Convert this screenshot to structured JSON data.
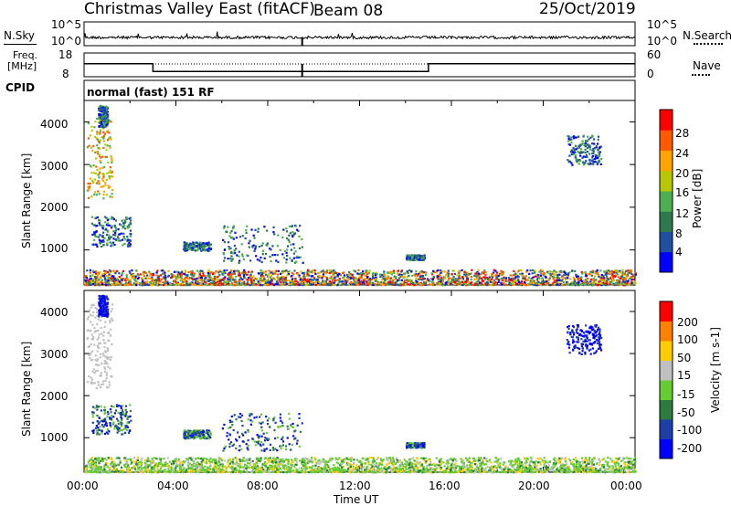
{
  "header": {
    "station": "Christmas Valley East (fitACF)",
    "beam": "Beam 08",
    "date": "25/Oct/2019"
  },
  "nsky": {
    "label": "N.Sky",
    "tick_top": "10^5",
    "tick_bottom": "10^0",
    "right_label": "N.Search",
    "right_tick_top": "10^5",
    "right_tick_bottom": "10^0"
  },
  "freq": {
    "label_line1": "Freq.",
    "label_line2": "[MHz]",
    "tick_top": "18",
    "tick_bottom": "8",
    "right_label": "Nave",
    "right_tick_top": "60",
    "right_tick_bottom": "0"
  },
  "cpid": {
    "label": "CPID",
    "value": "normal (fast) 151 RF"
  },
  "power_panel": {
    "ylabel": "Slant Range [km]",
    "yticks": [
      "4000",
      "3000",
      "2000",
      "1000"
    ],
    "colorbar_label": "Power [dB]",
    "colorbar_ticks": [
      "28",
      "24",
      "20",
      "16",
      "12",
      "8",
      "4"
    ]
  },
  "velocity_panel": {
    "ylabel": "Slant Range [km]",
    "yticks": [
      "4000",
      "3000",
      "2000",
      "1000"
    ],
    "colorbar_label": "Velocity [m s-1]",
    "colorbar_ticks": [
      "200",
      "100",
      "50",
      "15",
      "-15",
      "-50",
      "-100",
      "-200"
    ]
  },
  "xaxis": {
    "label": "Time UT",
    "ticks": [
      "00:00",
      "04:00",
      "08:00",
      "12:00",
      "16:00",
      "20:00",
      "00:00"
    ]
  },
  "chart_data": {
    "type": "heatmap",
    "x_range_hours": [
      0,
      24
    ],
    "y_range_km": [
      180,
      4500
    ],
    "frequency_mhz_segments": [
      {
        "start_hour": 0,
        "end_hour": 3,
        "value": 13.5
      },
      {
        "start_hour": 3,
        "end_hour": 15,
        "value": 10.2
      },
      {
        "start_hour": 15,
        "end_hour": 24,
        "value": 13.5
      }
    ],
    "power_colors": [
      "#0000ff",
      "#1f4fa0",
      "#2e7a4e",
      "#4caf50",
      "#b8c800",
      "#ffa500",
      "#ff5a00",
      "#ff0000"
    ],
    "velocity_colors": [
      "#0000ff",
      "#1d3fa8",
      "#2e7b3e",
      "#66cc33",
      "#c0c0c0",
      "#ffcc00",
      "#ff8000",
      "#ff0000"
    ],
    "scatter_regions": [
      {
        "name": "near range",
        "t0": 0.0,
        "t1": 24.0,
        "r0": 200,
        "r1": 550
      },
      {
        "name": "early arc",
        "t0": 0.1,
        "t1": 1.2,
        "r0": 2200,
        "r1": 4200
      },
      {
        "name": "early diagonal",
        "t0": 0.3,
        "t1": 2.0,
        "r0": 1100,
        "r1": 1800
      },
      {
        "name": "early upper",
        "t0": 0.6,
        "t1": 1.0,
        "r0": 3900,
        "r1": 4400
      },
      {
        "name": "mid 1",
        "t0": 4.3,
        "t1": 5.5,
        "r0": 1000,
        "r1": 1200
      },
      {
        "name": "mid 2",
        "t0": 6.0,
        "t1": 9.5,
        "r0": 700,
        "r1": 1600
      },
      {
        "name": "mid 3",
        "t0": 14.0,
        "t1": 14.8,
        "r0": 780,
        "r1": 900
      },
      {
        "name": "late",
        "t0": 21.0,
        "t1": 22.5,
        "r0": 3000,
        "r1": 3700
      }
    ]
  }
}
